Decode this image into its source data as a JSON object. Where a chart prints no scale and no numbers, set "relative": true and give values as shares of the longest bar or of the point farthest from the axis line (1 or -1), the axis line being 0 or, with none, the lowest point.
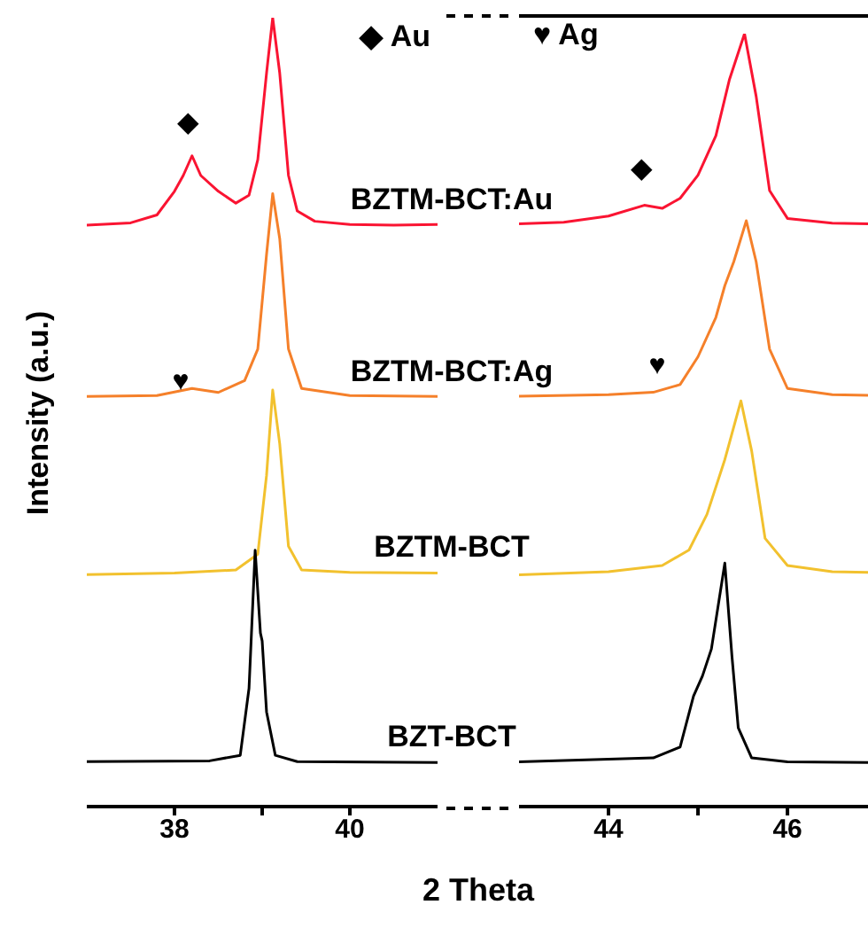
{
  "chart_data": [
    {
      "type": "line",
      "relative": true,
      "tick_labels": "x",
      "xlabel": "2 Theta",
      "ylabel": "Intensity (a.u.)",
      "xlim": [
        37,
        41
      ],
      "xticks": [
        38,
        {
          "value": 39,
          "label": null
        },
        40
      ],
      "annotations": [
        "◆ Au",
        "◆",
        "♥"
      ],
      "series": [
        {
          "name": "BZTM-BCT:Au",
          "color": "#fa1432",
          "x": [
            37,
            37.5,
            37.8,
            38.0,
            38.1,
            38.2,
            38.3,
            38.5,
            38.7,
            38.85,
            38.95,
            39.05,
            39.12,
            39.2,
            39.3,
            39.4,
            39.6,
            40,
            40.5,
            41
          ],
          "values": [
            0.737,
            0.74,
            0.75,
            0.78,
            0.8,
            0.825,
            0.8,
            0.78,
            0.765,
            0.775,
            0.82,
            0.93,
            1.0,
            0.93,
            0.8,
            0.755,
            0.742,
            0.738,
            0.737,
            0.738
          ]
        },
        {
          "name": "BZTM-BCT:Ag",
          "color": "#f5802a",
          "x": [
            37,
            37.8,
            38.2,
            38.5,
            38.8,
            38.95,
            39.05,
            39.12,
            39.2,
            39.3,
            39.45,
            40,
            41
          ],
          "values": [
            0.52,
            0.521,
            0.53,
            0.525,
            0.54,
            0.58,
            0.7,
            0.777,
            0.72,
            0.58,
            0.53,
            0.521,
            0.52
          ]
        },
        {
          "name": "BZTM-BCT",
          "color": "#f2c12e",
          "x": [
            37,
            38,
            38.7,
            38.95,
            39.05,
            39.12,
            39.2,
            39.3,
            39.45,
            40,
            41
          ],
          "values": [
            0.294,
            0.296,
            0.3,
            0.32,
            0.42,
            0.528,
            0.46,
            0.33,
            0.3,
            0.297,
            0.296
          ]
        },
        {
          "name": "BZT-BCT",
          "color": "#000000",
          "x": [
            37,
            38.4,
            38.75,
            38.85,
            38.92,
            38.98,
            39.0,
            39.05,
            39.15,
            39.4,
            41
          ],
          "values": [
            0.057,
            0.058,
            0.065,
            0.15,
            0.325,
            0.22,
            0.21,
            0.12,
            0.065,
            0.057,
            0.056
          ]
        }
      ]
    },
    {
      "type": "line",
      "relative": true,
      "tick_labels": "x",
      "xlim": [
        43,
        46.9
      ],
      "xticks": [
        44,
        {
          "value": 45,
          "label": null
        },
        46
      ],
      "annotations": [
        "♥ Ag",
        "◆",
        "♥"
      ],
      "series": [
        {
          "color": "#fa1432",
          "x": [
            43,
            43.5,
            44,
            44.4,
            44.6,
            44.8,
            45.0,
            45.2,
            45.35,
            45.52,
            45.65,
            45.8,
            46.0,
            46.5,
            46.9
          ],
          "values": [
            0.754,
            0.756,
            0.764,
            0.778,
            0.774,
            0.787,
            0.817,
            0.868,
            0.94,
            1,
            0.919,
            0.797,
            0.761,
            0.755,
            0.754
          ]
        },
        {
          "color": "#f5802a",
          "x": [
            43,
            44,
            44.5,
            44.8,
            45.0,
            45.2,
            45.3,
            45.4,
            45.54,
            45.65,
            45.8,
            46.0,
            46.5,
            46.9
          ],
          "values": [
            0.531,
            0.533,
            0.536,
            0.546,
            0.582,
            0.633,
            0.674,
            0.705,
            0.758,
            0.705,
            0.592,
            0.541,
            0.533,
            0.532
          ]
        },
        {
          "color": "#f2c12e",
          "x": [
            43,
            44,
            44.6,
            44.9,
            45.1,
            45.3,
            45.48,
            45.6,
            45.75,
            46,
            46.5,
            46.9
          ],
          "values": [
            0.3,
            0.304,
            0.312,
            0.332,
            0.378,
            0.449,
            0.525,
            0.46,
            0.347,
            0.312,
            0.304,
            0.303
          ]
        },
        {
          "color": "#000000",
          "x": [
            43,
            44.5,
            44.8,
            44.95,
            45.05,
            45.15,
            45.3,
            45.38,
            45.45,
            45.6,
            46,
            46.9
          ],
          "values": [
            0.058,
            0.063,
            0.077,
            0.143,
            0.169,
            0.204,
            0.315,
            0.194,
            0.102,
            0.063,
            0.058,
            0.057
          ]
        }
      ]
    }
  ]
}
